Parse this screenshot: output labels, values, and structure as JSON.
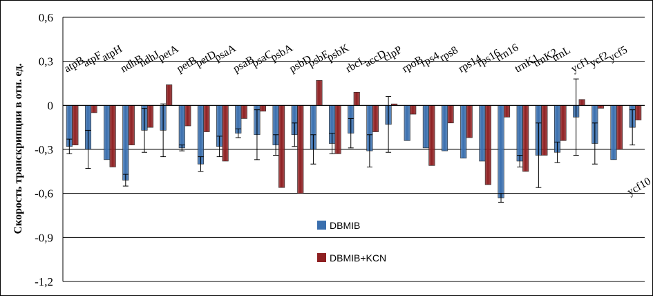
{
  "chart_data": {
    "type": "bar",
    "ylabel": "Скорость транскрипции в отн. ед.",
    "ylim": [
      -1.2,
      0.6
    ],
    "yticks": [
      0.6,
      0.3,
      0,
      -0.3,
      -0.6,
      -0.9,
      -1.2
    ],
    "ytick_labels": [
      "0,6",
      "0,3",
      "0",
      "-0,3",
      "-0,6",
      "-0,9",
      "-1,2"
    ],
    "grid": true,
    "legend_position": "bottom-center",
    "categories": [
      "atpB",
      "atpF",
      "atpH",
      "ndhB",
      "ndhJ",
      "petA",
      "petB",
      "petD",
      "psaA",
      "psaB",
      "psaC",
      "psbA",
      "psbD",
      "psbE",
      "psbK",
      "rbcL",
      "accD",
      "clpP",
      "rpoB",
      "rps4",
      "rps8",
      "rps14",
      "rps16",
      "rrn16",
      "trnK1",
      "trnK2",
      "trnL",
      "ycf1",
      "ycf2",
      "ycf5",
      "ycf10"
    ],
    "series": [
      {
        "name": "DBMIB",
        "color": "#3a6fae",
        "values": [
          -0.28,
          -0.3,
          -0.37,
          -0.51,
          -0.17,
          -0.17,
          -0.29,
          -0.4,
          -0.28,
          -0.19,
          -0.2,
          -0.27,
          -0.2,
          -0.3,
          -0.26,
          -0.19,
          -0.31,
          -0.13,
          -0.24,
          -0.29,
          -0.31,
          -0.36,
          -0.38,
          -0.63,
          -0.38,
          -0.34,
          -0.32,
          -0.08,
          -0.26,
          -0.37,
          -0.15
        ],
        "errors": [
          0.05,
          0.13,
          0.0,
          0.04,
          0.15,
          0.18,
          0.02,
          0.05,
          0.07,
          0.03,
          0.17,
          0.07,
          0.08,
          0.1,
          0.07,
          0.1,
          0.11,
          0.19,
          0.0,
          0.0,
          0.0,
          0.0,
          0.0,
          0.03,
          0.04,
          0.22,
          0.07,
          0.26,
          0.14,
          0.0,
          0.12
        ]
      },
      {
        "name": "DBMIB+KCN",
        "color": "#8e2022",
        "values": [
          -0.27,
          -0.05,
          -0.42,
          -0.27,
          -0.15,
          0.14,
          -0.14,
          -0.18,
          -0.38,
          -0.09,
          -0.04,
          -0.56,
          -0.6,
          0.17,
          -0.33,
          0.09,
          -0.18,
          0.01,
          -0.06,
          -0.41,
          -0.12,
          -0.22,
          -0.54,
          -0.08,
          -0.45,
          -0.34,
          -0.24,
          0.04,
          -0.02,
          -0.3,
          -0.1
        ]
      }
    ]
  }
}
